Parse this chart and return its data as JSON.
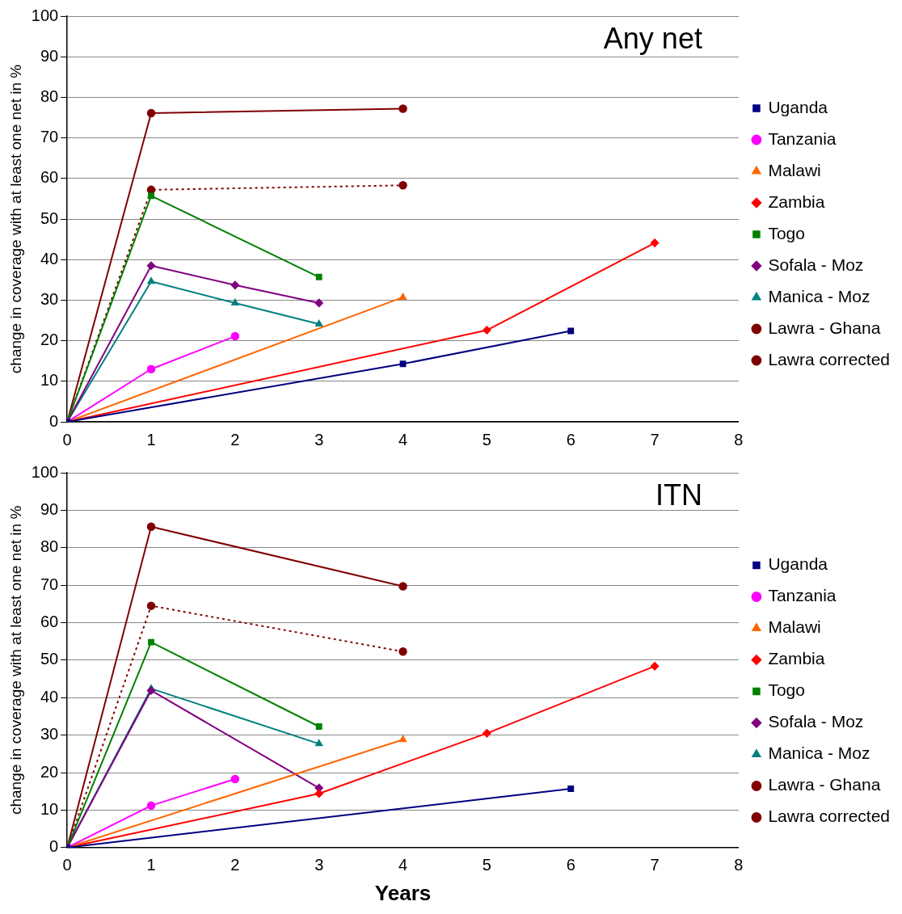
{
  "chart_data": [
    {
      "type": "line",
      "title": "Any net",
      "ylabel": "change in coverage with at least one net in %",
      "xlim": [
        0,
        8
      ],
      "xticks": [
        0,
        1,
        2,
        3,
        4,
        5,
        6,
        7,
        8
      ],
      "ylim": [
        0,
        100
      ],
      "yticks": [
        0,
        10,
        20,
        30,
        40,
        50,
        60,
        70,
        80,
        90,
        100
      ],
      "grid": "y",
      "legend": "right",
      "series": [
        {
          "name": "Uganda",
          "color": "#000080",
          "marker": "square",
          "x": [
            0,
            4,
            6
          ],
          "values": [
            0,
            14.3,
            22.4
          ]
        },
        {
          "name": "Tanzania",
          "color": "#ff00ff",
          "marker": "circle",
          "x": [
            0,
            1,
            2
          ],
          "values": [
            0,
            13,
            21.1
          ]
        },
        {
          "name": "Malawi",
          "color": "#ff6600",
          "marker": "triangle",
          "x": [
            0,
            4
          ],
          "values": [
            0,
            30.7
          ]
        },
        {
          "name": "Zambia",
          "color": "#ff0000",
          "marker": "diamond",
          "x": [
            0,
            5,
            7
          ],
          "values": [
            0,
            22.6,
            44.1
          ]
        },
        {
          "name": "Togo",
          "color": "#008000",
          "marker": "square",
          "x": [
            0,
            1,
            3
          ],
          "values": [
            0,
            55.7,
            35.7
          ]
        },
        {
          "name": "Sofala - Moz",
          "color": "#800080",
          "marker": "diamond",
          "x": [
            0,
            1,
            2,
            3
          ],
          "values": [
            0,
            38.5,
            33.7,
            29.3
          ]
        },
        {
          "name": "Manica - Moz",
          "color": "#008080",
          "marker": "triangle",
          "x": [
            0,
            1,
            2,
            3
          ],
          "values": [
            0,
            34.6,
            29.3,
            24.1
          ]
        },
        {
          "name": "Lawra - Ghana",
          "color": "#800000",
          "marker": "circle",
          "x": [
            0,
            1,
            4
          ],
          "values": [
            0,
            76.1,
            77.2
          ]
        },
        {
          "name": "Lawra corrected",
          "color": "#800000",
          "marker": "circle",
          "line_style": "dotted",
          "x": [
            0,
            1,
            4
          ],
          "values": [
            0,
            57.2,
            58.3
          ]
        }
      ]
    },
    {
      "type": "line",
      "title": "ITN",
      "xlabel": "Years",
      "ylabel": "change in coverage with at least one net in %",
      "xlim": [
        0,
        8
      ],
      "xticks": [
        0,
        1,
        2,
        3,
        4,
        5,
        6,
        7,
        8
      ],
      "ylim": [
        0,
        100
      ],
      "yticks": [
        0,
        10,
        20,
        30,
        40,
        50,
        60,
        70,
        80,
        90,
        100
      ],
      "grid": "y",
      "legend": "right",
      "series": [
        {
          "name": "Uganda",
          "color": "#000080",
          "marker": "square",
          "x": [
            0,
            6
          ],
          "values": [
            0,
            15.7
          ]
        },
        {
          "name": "Tanzania",
          "color": "#ff00ff",
          "marker": "circle",
          "x": [
            0,
            1,
            2
          ],
          "values": [
            0,
            11.2,
            18.3
          ]
        },
        {
          "name": "Malawi",
          "color": "#ff6600",
          "marker": "triangle",
          "x": [
            0,
            4
          ],
          "values": [
            0,
            28.8
          ]
        },
        {
          "name": "Zambia",
          "color": "#ff0000",
          "marker": "diamond",
          "x": [
            0,
            3,
            5,
            7
          ],
          "values": [
            0,
            14.4,
            30.5,
            48.4
          ]
        },
        {
          "name": "Togo",
          "color": "#008000",
          "marker": "square",
          "x": [
            0,
            1,
            3
          ],
          "values": [
            0,
            54.8,
            32.3
          ]
        },
        {
          "name": "Sofala - Moz",
          "color": "#800080",
          "marker": "diamond",
          "x": [
            0,
            1,
            3
          ],
          "values": [
            0,
            41.9,
            15.9
          ]
        },
        {
          "name": "Manica - Moz",
          "color": "#008080",
          "marker": "triangle",
          "x": [
            0,
            1,
            3
          ],
          "values": [
            0,
            42.4,
            27.7
          ]
        },
        {
          "name": "Lawra - Ghana",
          "color": "#800000",
          "marker": "circle",
          "x": [
            0,
            1,
            4
          ],
          "values": [
            0,
            85.6,
            69.7
          ]
        },
        {
          "name": "Lawra corrected",
          "color": "#800000",
          "marker": "circle",
          "line_style": "dotted",
          "x": [
            0,
            1,
            4
          ],
          "values": [
            0,
            64.5,
            52.3
          ]
        }
      ]
    }
  ]
}
